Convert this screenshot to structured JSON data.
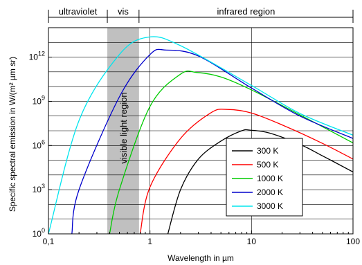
{
  "chart_data": {
    "type": "line",
    "xlabel": "Wavelength in µm",
    "ylabel": "Specific spectral emission in W/(m² µm sr)",
    "xscale": "log",
    "yscale": "log",
    "xlim": [
      0.1,
      100
    ],
    "ylim": [
      1,
      100000000000000.0
    ],
    "grid": true,
    "legend_position": "bottom-right",
    "x_tick_labels": [
      {
        "value": 0.1,
        "label": "0,1"
      },
      {
        "value": 1,
        "label": "1"
      },
      {
        "value": 10,
        "label": "10"
      },
      {
        "value": 100,
        "label": "100"
      }
    ],
    "y_tick_labels": [
      {
        "value": 1,
        "base": "10",
        "exp": "0"
      },
      {
        "value": 1000,
        "base": "10",
        "exp": "3"
      },
      {
        "value": 1000000,
        "base": "10",
        "exp": "6"
      },
      {
        "value": 1000000000,
        "base": "10",
        "exp": "9"
      },
      {
        "value": 1000000000000,
        "base": "10",
        "exp": "12"
      }
    ],
    "regions": [
      {
        "label": "ultraviolet",
        "x_from": 0.1,
        "x_to": 0.38
      },
      {
        "label": "vis",
        "x_from": 0.38,
        "x_to": 0.78
      },
      {
        "label": "infrared region",
        "x_from": 0.78,
        "x_to": 100
      }
    ],
    "shaded_band": {
      "label": "visible light region",
      "x_from": 0.38,
      "x_to": 0.78,
      "color": "#c0c0c0"
    },
    "series": [
      {
        "name": "300 K",
        "color": "#000000",
        "temperature": 300,
        "points": [
          [
            1.5,
            1.0
          ],
          [
            2,
            1000.0
          ],
          [
            3,
            120000.0
          ],
          [
            5,
            2000000.0
          ],
          [
            8,
            10000000.0
          ],
          [
            9.7,
            11000000.0
          ],
          [
            15,
            7000000.0
          ],
          [
            30,
            1200000.0
          ],
          [
            50,
            200000.0
          ],
          [
            100,
            16000.0
          ]
        ]
      },
      {
        "name": "500 K",
        "color": "#ff0000",
        "temperature": 500,
        "points": [
          [
            0.8,
            1.0
          ],
          [
            1,
            1500.0
          ],
          [
            2,
            3000000.0
          ],
          [
            4,
            170000000.0
          ],
          [
            5.8,
            280000000.0
          ],
          [
            10,
            160000000.0
          ],
          [
            20,
            25000000.0
          ],
          [
            50,
            1400000.0
          ],
          [
            100,
            120000.0
          ]
        ]
      },
      {
        "name": "1000 K",
        "color": "#00cc00",
        "temperature": 1000,
        "points": [
          [
            0.4,
            1.0
          ],
          [
            0.5,
            1000.0
          ],
          [
            1,
            450000000.0
          ],
          [
            2,
            70000000000.0
          ],
          [
            2.9,
            90000000000.0
          ],
          [
            5,
            45000000000.0
          ],
          [
            10,
            6000000000.0
          ],
          [
            30,
            120000000.0
          ],
          [
            100,
            1500000.0
          ]
        ]
      },
      {
        "name": "2000 K",
        "color": "#0000cc",
        "temperature": 2000,
        "points": [
          [
            0.17,
            1.0
          ],
          [
            0.2,
            1000.0
          ],
          [
            0.5,
            2000000000.0
          ],
          [
            1,
            1500000000000.0
          ],
          [
            1.45,
            3000000000000.0
          ],
          [
            3,
            1200000000000.0
          ],
          [
            10,
            8000000000.0
          ],
          [
            30,
            100000000.0
          ],
          [
            100,
            3000000.0
          ]
        ]
      },
      {
        "name": "3000 K",
        "color": "#00e5ee",
        "temperature": 3000,
        "points": [
          [
            0.1,
            1.0
          ],
          [
            0.2,
            50000000.0
          ],
          [
            0.5,
            1500000000000.0
          ],
          [
            0.97,
            23000000000000.0
          ],
          [
            2,
            6000000000000.0
          ],
          [
            10,
            12000000000.0
          ],
          [
            30,
            150000000.0
          ],
          [
            100,
            5000000.0
          ]
        ]
      }
    ]
  }
}
